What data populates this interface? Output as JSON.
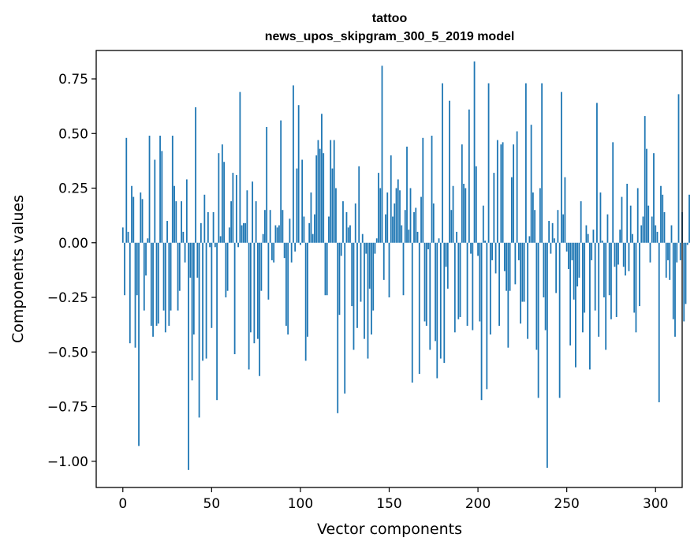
{
  "chart_data": {
    "type": "bar",
    "title_line1": "tattoo",
    "title_line2": "news_upos_skipgram_300_5_2019 model",
    "xlabel": "Vector components",
    "ylabel": "Components values",
    "xlim": [
      -15,
      315
    ],
    "ylim": [
      -1.12,
      0.88
    ],
    "xticks": [
      0,
      50,
      100,
      150,
      200,
      250,
      300
    ],
    "xtick_labels": [
      "0",
      "50",
      "100",
      "150",
      "200",
      "250",
      "300"
    ],
    "yticks": [
      0.75,
      0.5,
      0.25,
      0.0,
      -0.25,
      -0.5,
      -0.75,
      -1.0
    ],
    "ytick_labels": [
      "0.75",
      "0.50",
      "0.25",
      "0.00",
      "−0.25",
      "−0.50",
      "−0.75",
      "−1.00"
    ],
    "bar_color": "#1f77b4",
    "values": [
      0.07,
      -0.24,
      0.48,
      0.05,
      -0.46,
      0.26,
      0.21,
      -0.48,
      -0.24,
      -0.93,
      0.23,
      0.2,
      -0.31,
      -0.15,
      0.02,
      0.49,
      -0.38,
      -0.43,
      0.38,
      -0.38,
      -0.37,
      0.49,
      0.42,
      -0.31,
      -0.41,
      0.1,
      -0.38,
      -0.31,
      0.49,
      0.26,
      0.19,
      -0.31,
      -0.22,
      0.19,
      0.05,
      -0.09,
      0.29,
      -1.04,
      -0.16,
      -0.63,
      -0.42,
      0.62,
      -0.16,
      -0.8,
      0.09,
      -0.54,
      0.22,
      -0.53,
      0.14,
      -0.02,
      -0.39,
      0.14,
      -0.02,
      -0.72,
      0.41,
      0.03,
      0.45,
      0.37,
      -0.25,
      -0.22,
      0.07,
      0.19,
      0.32,
      -0.51,
      0.31,
      -0.02,
      0.69,
      0.08,
      0.09,
      0.09,
      0.24,
      -0.58,
      -0.41,
      0.28,
      -0.46,
      0.19,
      -0.44,
      -0.61,
      -0.22,
      0.04,
      0.15,
      0.53,
      -0.26,
      0.15,
      -0.08,
      -0.09,
      0.08,
      0.07,
      0.08,
      0.56,
      0.15,
      -0.07,
      -0.38,
      -0.42,
      0.11,
      -0.09,
      0.72,
      -0.04,
      0.34,
      0.63,
      -0.01,
      0.38,
      0.12,
      -0.54,
      -0.43,
      0.09,
      0.23,
      0.04,
      0.13,
      0.4,
      0.47,
      0.43,
      0.59,
      0.41,
      -0.24,
      -0.24,
      0.12,
      0.47,
      0.34,
      0.47,
      0.25,
      -0.78,
      -0.33,
      -0.06,
      0.19,
      -0.69,
      0.14,
      0.07,
      0.08,
      -0.29,
      -0.49,
      0.18,
      -0.39,
      0.35,
      -0.27,
      0.04,
      -0.44,
      -0.05,
      -0.53,
      -0.21,
      -0.42,
      -0.31,
      -0.05,
      0.02,
      0.32,
      0.25,
      0.81,
      -0.17,
      0.13,
      0.23,
      -0.25,
      0.4,
      0.12,
      0.18,
      0.25,
      0.29,
      0.24,
      0.08,
      -0.24,
      0.15,
      0.44,
      0.06,
      0.25,
      -0.64,
      0.14,
      0.16,
      0.05,
      -0.6,
      0.21,
      0.48,
      -0.36,
      -0.38,
      -0.03,
      -0.49,
      0.49,
      0.18,
      -0.45,
      -0.62,
      0.02,
      -0.53,
      0.73,
      -0.55,
      -0.11,
      -0.21,
      0.65,
      0.15,
      0.26,
      -0.41,
      0.05,
      -0.35,
      -0.34,
      0.45,
      0.27,
      0.25,
      -0.38,
      0.61,
      -0.05,
      -0.4,
      0.83,
      0.35,
      -0.06,
      -0.36,
      -0.72,
      0.17,
      0.01,
      -0.67,
      0.73,
      -0.42,
      -0.08,
      0.32,
      -0.14,
      0.47,
      -0.38,
      0.45,
      0.46,
      -0.13,
      -0.22,
      -0.48,
      -0.22,
      0.3,
      0.45,
      -0.19,
      0.51,
      -0.08,
      -0.37,
      -0.27,
      -0.27,
      0.73,
      -0.44,
      0.03,
      0.54,
      0.23,
      0.15,
      -0.49,
      -0.71,
      0.25,
      0.73,
      -0.25,
      -0.4,
      -1.03,
      0.1,
      -0.05,
      0.09,
      0.02,
      -0.23,
      0.15,
      -0.71,
      0.69,
      0.13,
      0.3,
      -0.04,
      -0.12,
      -0.47,
      -0.08,
      -0.26,
      -0.57,
      -0.2,
      -0.16,
      0.19,
      -0.41,
      -0.32,
      0.08,
      0.04,
      -0.58,
      -0.08,
      0.06,
      -0.31,
      0.64,
      -0.43,
      0.23,
      0.01,
      -0.25,
      -0.49,
      0.13,
      -0.24,
      -0.35,
      0.46,
      -0.11,
      -0.34,
      -0.1,
      0.06,
      0.21,
      -0.11,
      -0.15,
      0.27,
      -0.13,
      0.17,
      0.04,
      -0.32,
      -0.41,
      0.25,
      -0.29,
      0.08,
      0.12,
      0.58,
      0.43,
      0.17,
      -0.09,
      0.12,
      0.41,
      0.08,
      0.05,
      -0.73,
      0.26,
      0.22,
      0.14,
      -0.16,
      -0.08,
      -0.17,
      0.08,
      -0.35,
      -0.43,
      -0.09,
      0.68,
      -0.08,
      0.14,
      -0.36,
      -0.28,
      -0.01,
      0.22
    ]
  }
}
